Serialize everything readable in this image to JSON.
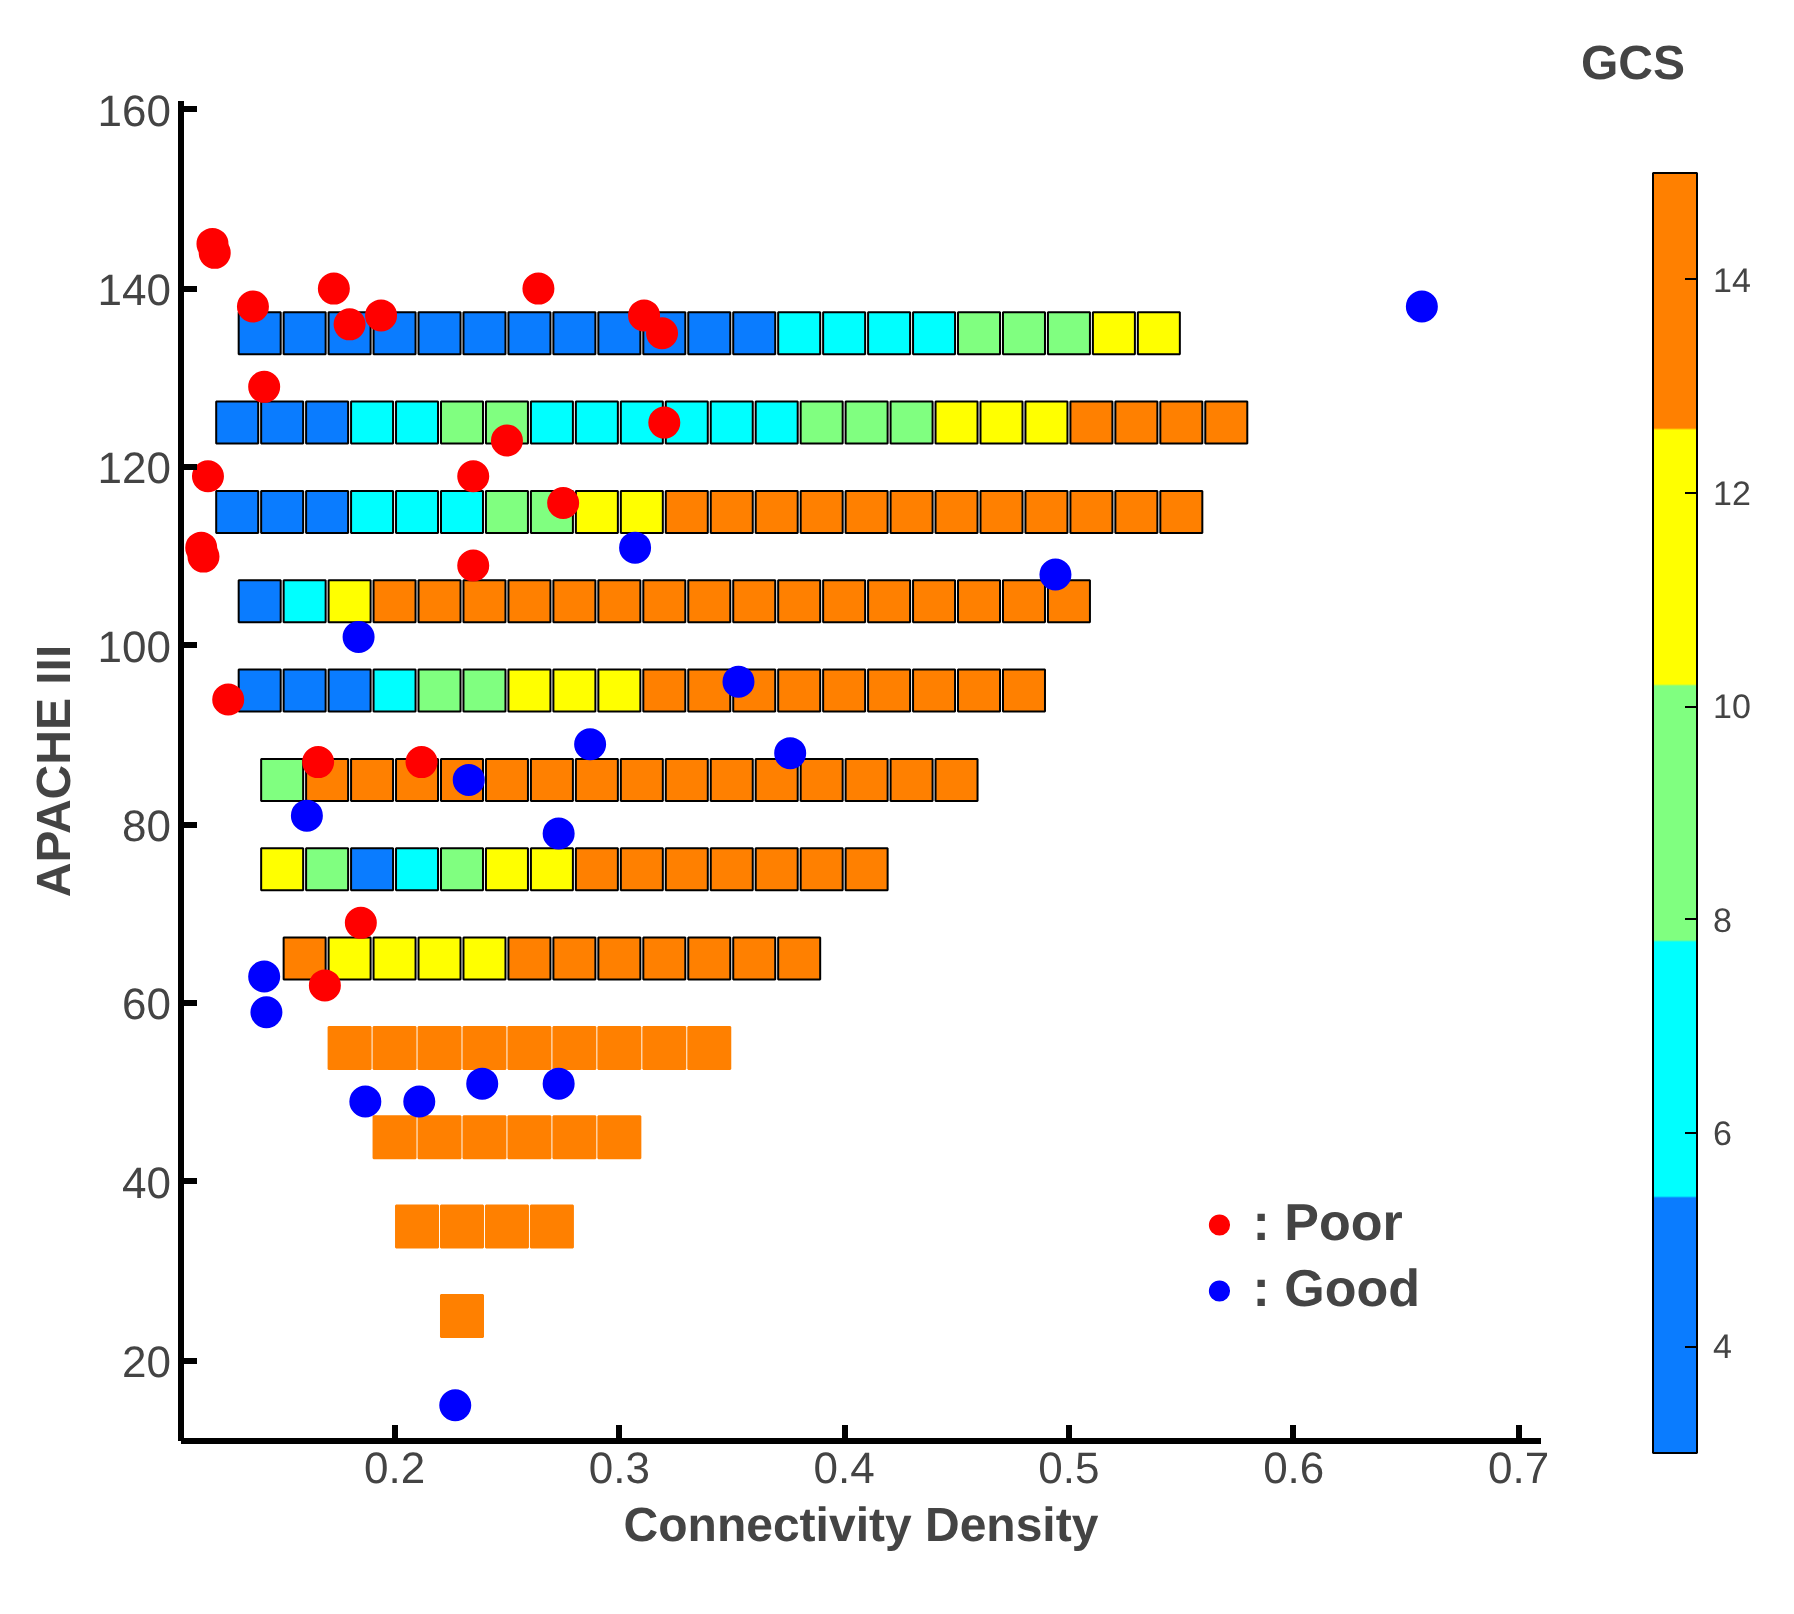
{
  "chart_data": {
    "type": "scatter",
    "xlabel": "Connectivity Density",
    "ylabel": "APACHE III",
    "clabel": "GCS",
    "clim": [
      3,
      15
    ],
    "cticks": [
      4,
      6,
      8,
      10,
      12,
      14
    ],
    "xlim": [
      0.105,
      0.71
    ],
    "ylim": [
      11,
      161
    ],
    "xticks": [
      0.2,
      0.3,
      0.4,
      0.5,
      0.6,
      0.7
    ],
    "yticks": [
      20,
      40,
      60,
      80,
      100,
      120,
      140,
      160
    ],
    "grid": false,
    "legend": "bottom right",
    "marker": "circle",
    "series": [
      {
        "marker": "square",
        "x": [
          0.14,
          0.16,
          0.18,
          0.2,
          0.22,
          0.24,
          0.26,
          0.28,
          0.3,
          0.32,
          0.34,
          0.36,
          0.38,
          0.4,
          0.42,
          0.44,
          0.46,
          0.48,
          0.5,
          0.52,
          0.54
        ],
        "values": [
          135,
          135,
          135,
          135,
          135,
          135,
          135,
          135,
          135,
          135,
          135,
          135,
          135,
          135,
          135,
          135,
          135,
          135,
          135,
          135,
          135
        ],
        "colors": [
          "#0a7cff",
          "#0a7cff",
          "#0a7cff",
          "#0a7cff",
          "#0a7cff",
          "#0a7cff",
          "#0a7cff",
          "#0a7cff",
          "#0a7cff",
          "#0a7cff",
          "#0a7cff",
          "#0a7cff",
          "#00ffff",
          "#00ffff",
          "#00ffff",
          "#00ffff",
          "#80ff80",
          "#80ff80",
          "#80ff80",
          "#ffff00",
          "#ffff00"
        ]
      },
      {
        "marker": "square",
        "x": [
          0.13,
          0.15,
          0.17,
          0.19,
          0.21,
          0.23,
          0.25,
          0.27,
          0.29,
          0.31,
          0.33,
          0.35,
          0.37,
          0.39,
          0.41,
          0.43,
          0.45,
          0.47,
          0.49,
          0.51,
          0.53,
          0.55,
          0.57
        ],
        "values": [
          125,
          125,
          125,
          125,
          125,
          125,
          125,
          125,
          125,
          125,
          125,
          125,
          125,
          125,
          125,
          125,
          125,
          125,
          125,
          125,
          125,
          125,
          125
        ],
        "colors": [
          "#0a7cff",
          "#0a7cff",
          "#0a7cff",
          "#00ffff",
          "#00ffff",
          "#80ff80",
          "#80ff80",
          "#00ffff",
          "#00ffff",
          "#00ffff",
          "#00ffff",
          "#00ffff",
          "#00ffff",
          "#80ff80",
          "#80ff80",
          "#80ff80",
          "#ffff00",
          "#ffff00",
          "#ffff00",
          "#ff8000",
          "#ff8000",
          "#ff8000",
          "#ff8000"
        ]
      },
      {
        "marker": "square",
        "x": [
          0.13,
          0.15,
          0.17,
          0.19,
          0.21,
          0.23,
          0.25,
          0.27,
          0.29,
          0.31,
          0.33,
          0.35,
          0.37,
          0.39,
          0.41,
          0.43,
          0.45,
          0.47,
          0.49,
          0.51,
          0.53,
          0.55
        ],
        "values": [
          115,
          115,
          115,
          115,
          115,
          115,
          115,
          115,
          115,
          115,
          115,
          115,
          115,
          115,
          115,
          115,
          115,
          115,
          115,
          115,
          115,
          115
        ],
        "colors": [
          "#0a7cff",
          "#0a7cff",
          "#0a7cff",
          "#00ffff",
          "#00ffff",
          "#00ffff",
          "#80ff80",
          "#80ff80",
          "#ffff00",
          "#ffff00",
          "#ff8000",
          "#ff8000",
          "#ff8000",
          "#ff8000",
          "#ff8000",
          "#ff8000",
          "#ff8000",
          "#ff8000",
          "#ff8000",
          "#ff8000",
          "#ff8000",
          "#ff8000"
        ]
      },
      {
        "marker": "square",
        "x": [
          0.14,
          0.16,
          0.18,
          0.2,
          0.22,
          0.24,
          0.26,
          0.28,
          0.3,
          0.32,
          0.34,
          0.36,
          0.38,
          0.4,
          0.42,
          0.44,
          0.46,
          0.48,
          0.5
        ],
        "values": [
          105,
          105,
          105,
          105,
          105,
          105,
          105,
          105,
          105,
          105,
          105,
          105,
          105,
          105,
          105,
          105,
          105,
          105,
          105
        ],
        "colors": [
          "#0a7cff",
          "#00ffff",
          "#ffff00",
          "#ff8000",
          "#ff8000",
          "#ff8000",
          "#ff8000",
          "#ff8000",
          "#ff8000",
          "#ff8000",
          "#ff8000",
          "#ff8000",
          "#ff8000",
          "#ff8000",
          "#ff8000",
          "#ff8000",
          "#ff8000",
          "#ff8000",
          "#ff8000"
        ]
      },
      {
        "marker": "square",
        "x": [
          0.14,
          0.16,
          0.18,
          0.2,
          0.22,
          0.24,
          0.26,
          0.28,
          0.3,
          0.32,
          0.34,
          0.36,
          0.38,
          0.4,
          0.42,
          0.44,
          0.46,
          0.48
        ],
        "values": [
          95,
          95,
          95,
          95,
          95,
          95,
          95,
          95,
          95,
          95,
          95,
          95,
          95,
          95,
          95,
          95,
          95,
          95
        ],
        "colors": [
          "#0a7cff",
          "#0a7cff",
          "#0a7cff",
          "#00ffff",
          "#80ff80",
          "#80ff80",
          "#ffff00",
          "#ffff00",
          "#ffff00",
          "#ff8000",
          "#ff8000",
          "#ff8000",
          "#ff8000",
          "#ff8000",
          "#ff8000",
          "#ff8000",
          "#ff8000",
          "#ff8000"
        ]
      },
      {
        "marker": "square",
        "x": [
          0.15,
          0.17,
          0.19,
          0.21,
          0.23,
          0.25,
          0.27,
          0.29,
          0.31,
          0.33,
          0.35,
          0.37,
          0.39,
          0.41,
          0.43,
          0.45
        ],
        "values": [
          85,
          85,
          85,
          85,
          85,
          85,
          85,
          85,
          85,
          85,
          85,
          85,
          85,
          85,
          85,
          85
        ],
        "colors": [
          "#80ff80",
          "#ff8000",
          "#ff8000",
          "#ff8000",
          "#ff8000",
          "#ff8000",
          "#ff8000",
          "#ff8000",
          "#ff8000",
          "#ff8000",
          "#ff8000",
          "#ff8000",
          "#ff8000",
          "#ff8000",
          "#ff8000",
          "#ff8000"
        ]
      },
      {
        "marker": "square",
        "x": [
          0.15,
          0.17,
          0.19,
          0.21,
          0.23,
          0.25,
          0.27,
          0.29,
          0.31,
          0.33,
          0.35,
          0.37,
          0.39,
          0.41
        ],
        "values": [
          75,
          75,
          75,
          75,
          75,
          75,
          75,
          75,
          75,
          75,
          75,
          75,
          75,
          75
        ],
        "colors": [
          "#ffff00",
          "#80ff80",
          "#0a7cff",
          "#00ffff",
          "#80ff80",
          "#ffff00",
          "#ffff00",
          "#ff8000",
          "#ff8000",
          "#ff8000",
          "#ff8000",
          "#ff8000",
          "#ff8000",
          "#ff8000"
        ]
      },
      {
        "marker": "square",
        "x": [
          0.16,
          0.18,
          0.2,
          0.22,
          0.24,
          0.26,
          0.28,
          0.3,
          0.32,
          0.34,
          0.36,
          0.38
        ],
        "values": [
          65,
          65,
          65,
          65,
          65,
          65,
          65,
          65,
          65,
          65,
          65,
          65
        ],
        "colors": [
          "#ff8000",
          "#ffff00",
          "#ffff00",
          "#ffff00",
          "#ffff00",
          "#ff8000",
          "#ff8000",
          "#ff8000",
          "#ff8000",
          "#ff8000",
          "#ff8000",
          "#ff8000"
        ]
      },
      {
        "marker": "square",
        "color": "#ff8000",
        "x": [
          0.18,
          0.2,
          0.22,
          0.24,
          0.26,
          0.28,
          0.3,
          0.32,
          0.34
        ],
        "values": [
          55,
          55,
          55,
          55,
          55,
          55,
          55,
          55,
          55
        ]
      },
      {
        "marker": "square",
        "color": "#ff8000",
        "x": [
          0.2,
          0.22,
          0.24,
          0.26,
          0.28,
          0.3
        ],
        "values": [
          45,
          45,
          45,
          45,
          45,
          45
        ]
      },
      {
        "marker": "square",
        "color": "#ff8000",
        "x": [
          0.21,
          0.23,
          0.25,
          0.27
        ],
        "values": [
          35,
          35,
          35,
          35
        ]
      },
      {
        "marker": "square",
        "color": "#ff8000",
        "x": [
          0.23
        ],
        "values": [
          25
        ]
      },
      {
        "name": ": Poor",
        "color": "#ff0000",
        "x": [
          0.119,
          0.12,
          0.137,
          0.173,
          0.18,
          0.194,
          0.264,
          0.311,
          0.319,
          0.142,
          0.32,
          0.25,
          0.117,
          0.235,
          0.275,
          0.115,
          0.114,
          0.235,
          0.126,
          0.166,
          0.212,
          0.185,
          0.169
        ],
        "values": [
          145,
          144,
          138,
          140,
          136,
          137,
          140,
          137,
          135,
          129,
          125,
          123,
          119,
          119,
          116,
          110,
          111,
          109,
          94,
          87,
          87,
          69,
          62
        ]
      },
      {
        "name": ": Good",
        "color": "#0000ff",
        "x": [
          0.657,
          0.307,
          0.494,
          0.184,
          0.353,
          0.287,
          0.376,
          0.233,
          0.161,
          0.273,
          0.142,
          0.143,
          0.187,
          0.211,
          0.239,
          0.273,
          0.227
        ],
        "values": [
          138,
          111,
          108,
          101,
          96,
          89,
          88,
          85,
          81,
          79,
          63,
          59,
          49,
          49,
          51,
          51,
          15
        ]
      }
    ]
  }
}
